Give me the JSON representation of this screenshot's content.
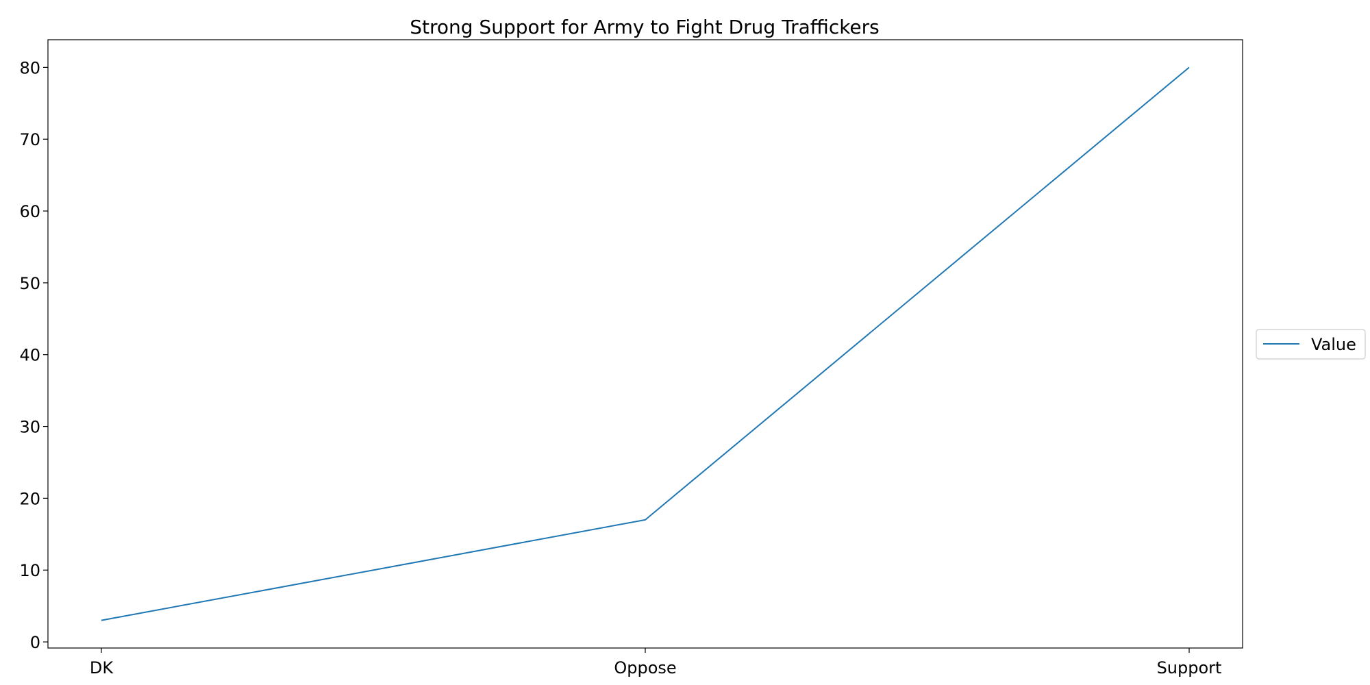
{
  "chart_data": {
    "type": "line",
    "title": "Strong Support for Army to Fight Drug Traffickers",
    "xlabel": "",
    "ylabel": "",
    "categories": [
      "DK",
      "Oppose",
      "Support"
    ],
    "series": [
      {
        "name": "Value",
        "values": [
          3,
          17,
          80
        ]
      }
    ],
    "ylim": [
      -0.85,
      83.85
    ],
    "yticks": [
      0,
      10,
      20,
      30,
      40,
      50,
      60,
      70,
      80
    ],
    "grid": false,
    "legend_position": "center-right outside plot",
    "colors": {
      "series": "#1f77b4",
      "axes": "#000000"
    }
  }
}
